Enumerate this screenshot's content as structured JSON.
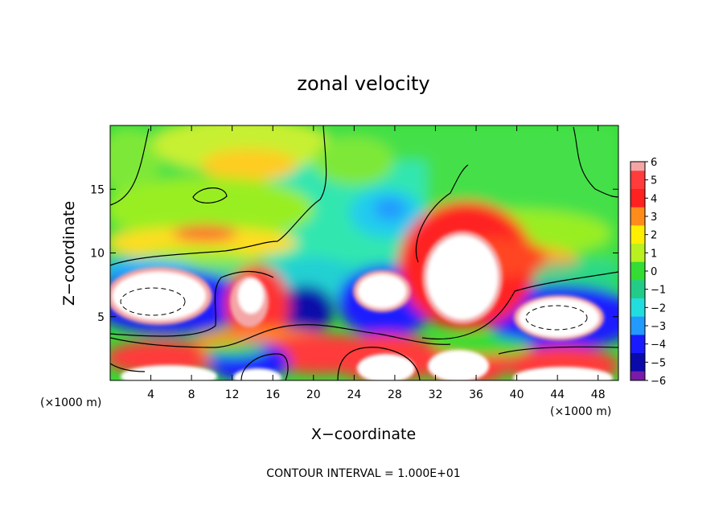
{
  "chart_data": {
    "type": "heatmap",
    "title": "zonal velocity",
    "xlabel": "X−coordinate",
    "ylabel": "Z−coordinate",
    "x_unit_left": "(×1000 m)",
    "x_unit_right": "(×1000 m)",
    "footer": "CONTOUR INTERVAL = 1.000E+01",
    "xlim": [
      0,
      50
    ],
    "ylim": [
      0,
      20
    ],
    "xticks": [
      4,
      8,
      12,
      16,
      20,
      24,
      28,
      32,
      36,
      40,
      44,
      48
    ],
    "yticks": [
      5,
      10,
      15
    ],
    "colorbar": {
      "ticks": [
        6,
        5,
        4,
        3,
        2,
        1,
        0,
        -1,
        -2,
        -3,
        -4,
        -5,
        -6
      ],
      "labels": [
        "6",
        "5",
        "4",
        "3",
        "2",
        "1",
        "0",
        "−1",
        "−2",
        "−3",
        "−4",
        "−5",
        "−6"
      ],
      "colors": [
        "#f4a6a6",
        "#ff3b3b",
        "#ff2020",
        "#ff8c1a",
        "#ffee00",
        "#b8f020",
        "#33dd33",
        "#22cc88",
        "#22dddd",
        "#2299ff",
        "#1a1aff",
        "#0a0aaa",
        "#7a1aa8"
      ]
    },
    "field_features": [
      {
        "kind": "saturated_positive",
        "x": 34,
        "z": 6.5,
        "rx": 3.4,
        "rz": 4.2
      },
      {
        "kind": "saturated_positive",
        "x": 26,
        "z": 6.0,
        "rx": 2.2,
        "rz": 1.8
      },
      {
        "kind": "saturated_positive",
        "x": 5,
        "z": 6.2,
        "rx": 4.3,
        "rz": 1.9
      },
      {
        "kind": "saturated_positive",
        "x": 44,
        "z": 4.8,
        "rx": 3.8,
        "rz": 1.6
      },
      {
        "kind": "saturated_positive",
        "x": 14,
        "z": 7.0,
        "rx": 1.6,
        "rz": 1.6
      },
      {
        "kind": "saturated_positive",
        "x": 27,
        "z": 0.8,
        "rx": 2.2,
        "rz": 1.0
      },
      {
        "kind": "saturated_positive",
        "x": 33,
        "z": 1.0,
        "rx": 2.8,
        "rz": 1.1
      },
      {
        "kind": "saturated_positive",
        "x": 5,
        "z": 0.5,
        "rx": 3.5,
        "rz": 0.7
      },
      {
        "kind": "saturated_positive",
        "x": 13,
        "z": 0.4,
        "rx": 2.0,
        "rz": 0.6
      },
      {
        "kind": "saturated_positive",
        "x": 44,
        "z": 0.6,
        "rx": 4.0,
        "rz": 0.8
      },
      {
        "kind": "strong_negative",
        "x": 19,
        "z": 5.5,
        "rx": 1.5,
        "rz": 1.2
      },
      {
        "kind": "strong_negative",
        "x": 28,
        "z": 5.0,
        "rx": 1.8,
        "rz": 1.3
      },
      {
        "kind": "moderate_negative",
        "x": 26,
        "z": 13.0,
        "rx": 2.4,
        "rz": 1.4
      },
      {
        "kind": "moderate_positive",
        "x": 14,
        "z": 17.5,
        "rx": 3.2,
        "rz": 1.6
      },
      {
        "kind": "moderate_positive",
        "x": 7,
        "z": 18.5,
        "rx": 4.0,
        "rz": 1.2
      },
      {
        "kind": "moderate_positive",
        "x": 41,
        "z": 9.5,
        "rx": 3.0,
        "rz": 1.0
      },
      {
        "kind": "strong_positive",
        "x": 9,
        "z": 2.5,
        "rx": 4.0,
        "rz": 1.0
      },
      {
        "kind": "strong_positive",
        "x": 22,
        "z": 2.5,
        "rx": 4.0,
        "rz": 1.2
      },
      {
        "kind": "strong_positive",
        "x": 15,
        "z": 6.0,
        "rx": 3.0,
        "rz": 2.5
      }
    ]
  }
}
